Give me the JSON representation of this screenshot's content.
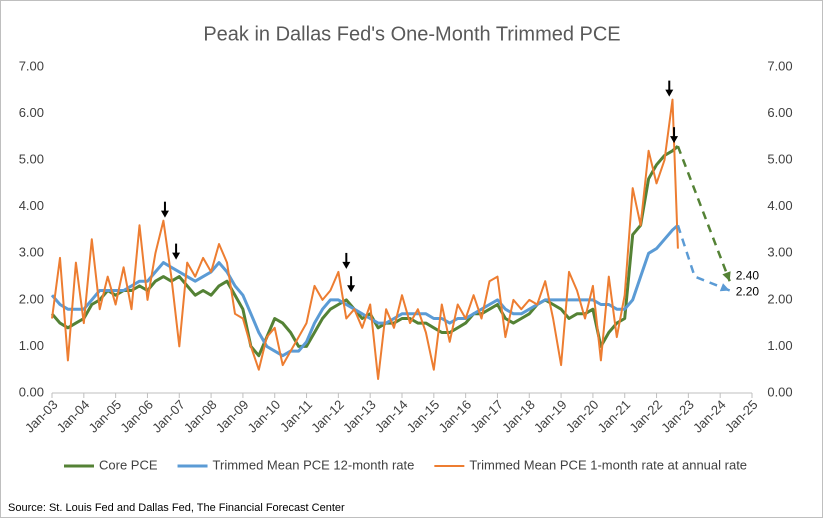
{
  "chart_data": {
    "type": "line",
    "title": "Peak in Dallas Fed's One-Month Trimmed PCE",
    "source": "Source: St. Louis Fed and Dallas Fed, The Financial Forecast Center",
    "x": [
      2003,
      2003.25,
      2003.5,
      2003.75,
      2004,
      2004.25,
      2004.5,
      2004.75,
      2005,
      2005.25,
      2005.5,
      2005.75,
      2006,
      2006.25,
      2006.5,
      2006.75,
      2007,
      2007.25,
      2007.5,
      2007.75,
      2008,
      2008.25,
      2008.5,
      2008.75,
      2009,
      2009.25,
      2009.5,
      2009.75,
      2010,
      2010.25,
      2010.5,
      2010.75,
      2011,
      2011.25,
      2011.5,
      2011.75,
      2012,
      2012.25,
      2012.5,
      2012.75,
      2013,
      2013.25,
      2013.5,
      2013.75,
      2014,
      2014.25,
      2014.5,
      2014.75,
      2015,
      2015.25,
      2015.5,
      2015.75,
      2016,
      2016.25,
      2016.5,
      2016.75,
      2017,
      2017.25,
      2017.5,
      2017.75,
      2018,
      2018.25,
      2018.5,
      2018.75,
      2019,
      2019.25,
      2019.5,
      2019.75,
      2020,
      2020.25,
      2020.5,
      2020.75,
      2021,
      2021.25,
      2021.5,
      2021.75,
      2022,
      2022.25,
      2022.5,
      2022.67
    ],
    "series": [
      {
        "name": "Core PCE",
        "color": "#548235",
        "values": [
          1.7,
          1.5,
          1.4,
          1.5,
          1.6,
          1.9,
          2.0,
          2.2,
          2.1,
          2.2,
          2.2,
          2.3,
          2.2,
          2.4,
          2.5,
          2.4,
          2.5,
          2.3,
          2.1,
          2.2,
          2.1,
          2.3,
          2.4,
          2.1,
          1.8,
          1.0,
          0.8,
          1.2,
          1.6,
          1.5,
          1.3,
          1.0,
          1.0,
          1.3,
          1.6,
          1.8,
          1.9,
          2.0,
          1.8,
          1.6,
          1.7,
          1.4,
          1.5,
          1.5,
          1.6,
          1.6,
          1.5,
          1.5,
          1.4,
          1.3,
          1.3,
          1.4,
          1.5,
          1.7,
          1.7,
          1.8,
          1.9,
          1.6,
          1.5,
          1.6,
          1.7,
          1.9,
          2.0,
          1.9,
          1.8,
          1.6,
          1.7,
          1.7,
          1.8,
          1.0,
          1.3,
          1.5,
          1.6,
          3.4,
          3.6,
          4.6,
          4.9,
          5.1,
          5.2,
          5.3
        ]
      },
      {
        "name": "Trimmed Mean PCE 12-month rate",
        "color": "#5b9bd5",
        "values": [
          2.1,
          1.9,
          1.8,
          1.8,
          1.8,
          2.0,
          2.2,
          2.2,
          2.2,
          2.2,
          2.3,
          2.4,
          2.4,
          2.6,
          2.8,
          2.7,
          2.6,
          2.5,
          2.4,
          2.5,
          2.6,
          2.8,
          2.6,
          2.3,
          2.1,
          1.7,
          1.3,
          1.0,
          0.9,
          0.8,
          0.9,
          0.9,
          1.1,
          1.5,
          1.8,
          2.0,
          2.0,
          1.9,
          1.8,
          1.7,
          1.6,
          1.5,
          1.5,
          1.6,
          1.7,
          1.7,
          1.7,
          1.7,
          1.6,
          1.6,
          1.5,
          1.6,
          1.6,
          1.7,
          1.8,
          1.9,
          2.0,
          1.8,
          1.7,
          1.7,
          1.8,
          1.9,
          2.0,
          2.0,
          2.0,
          2.0,
          2.0,
          2.0,
          2.0,
          1.9,
          1.9,
          1.8,
          1.8,
          2.0,
          2.5,
          3.0,
          3.1,
          3.3,
          3.5,
          3.6
        ]
      },
      {
        "name": "Trimmed Mean PCE 1-month rate at annual rate",
        "color": "#ed7d31",
        "values": [
          1.6,
          2.9,
          0.7,
          2.8,
          1.5,
          3.3,
          1.8,
          2.5,
          1.9,
          2.7,
          1.8,
          3.6,
          2.0,
          3.0,
          3.7,
          2.5,
          1.0,
          2.8,
          2.5,
          2.9,
          2.6,
          3.2,
          2.8,
          1.7,
          1.6,
          1.0,
          0.5,
          1.2,
          1.4,
          0.6,
          0.9,
          1.2,
          1.5,
          2.3,
          2.0,
          2.2,
          2.6,
          1.6,
          1.8,
          1.4,
          1.9,
          0.3,
          1.8,
          1.4,
          2.1,
          1.5,
          1.8,
          1.3,
          0.5,
          1.9,
          1.1,
          1.9,
          1.6,
          2.1,
          1.6,
          2.4,
          2.5,
          1.2,
          2.0,
          1.8,
          2.0,
          1.9,
          2.4,
          1.6,
          0.6,
          2.6,
          2.2,
          1.6,
          2.3,
          0.7,
          2.5,
          1.2,
          2.1,
          4.4,
          3.6,
          5.2,
          4.5,
          5.0,
          6.3,
          3.1
        ]
      }
    ],
    "forecasts": [
      {
        "color": "#548235",
        "x": [
          2022.67,
          2024.3
        ],
        "values": [
          5.3,
          2.4
        ],
        "value_label": "2.40"
      },
      {
        "color": "#5b9bd5",
        "x": [
          2022.67,
          2023.2,
          2024.3
        ],
        "values": [
          3.6,
          2.5,
          2.2
        ],
        "value_label": "2.20"
      }
    ],
    "peak_markers": {
      "x": [
        2006.55,
        2006.9,
        2012.25,
        2012.4,
        2022.4,
        2022.55
      ],
      "values": [
        3.7,
        2.8,
        2.6,
        2.1,
        6.3,
        5.3
      ]
    },
    "xlim": [
      2003,
      2025
    ],
    "xticks": [
      {
        "value": 2003,
        "label": "Jan-03"
      },
      {
        "value": 2004,
        "label": "Jan-04"
      },
      {
        "value": 2005,
        "label": "Jan-05"
      },
      {
        "value": 2006,
        "label": "Jan-06"
      },
      {
        "value": 2007,
        "label": "Jan-07"
      },
      {
        "value": 2008,
        "label": "Jan-08"
      },
      {
        "value": 2009,
        "label": "Jan-09"
      },
      {
        "value": 2010,
        "label": "Jan-10"
      },
      {
        "value": 2011,
        "label": "Jan-11"
      },
      {
        "value": 2012,
        "label": "Jan-12"
      },
      {
        "value": 2013,
        "label": "Jan-13"
      },
      {
        "value": 2014,
        "label": "Jan-14"
      },
      {
        "value": 2015,
        "label": "Jan-15"
      },
      {
        "value": 2016,
        "label": "Jan-16"
      },
      {
        "value": 2017,
        "label": "Jan-17"
      },
      {
        "value": 2018,
        "label": "Jan-18"
      },
      {
        "value": 2019,
        "label": "Jan-19"
      },
      {
        "value": 2020,
        "label": "Jan-20"
      },
      {
        "value": 2021,
        "label": "Jan-21"
      },
      {
        "value": 2022,
        "label": "Jan-22"
      },
      {
        "value": 2023,
        "label": "Jan-23"
      },
      {
        "value": 2024,
        "label": "Jan-24"
      },
      {
        "value": 2025,
        "label": "Jan-25"
      }
    ],
    "ylim": [
      0,
      7
    ],
    "yticks": [
      {
        "value": 0,
        "label": "0.00"
      },
      {
        "value": 1,
        "label": "1.00"
      },
      {
        "value": 2,
        "label": "2.00"
      },
      {
        "value": 3,
        "label": "3.00"
      },
      {
        "value": 4,
        "label": "4.00"
      },
      {
        "value": 5,
        "label": "5.00"
      },
      {
        "value": 6,
        "label": "6.00"
      },
      {
        "value": 7,
        "label": "7.00"
      }
    ],
    "y2lim": [
      0,
      7
    ],
    "y2ticks": [
      {
        "value": 0,
        "label": "0.00"
      },
      {
        "value": 1,
        "label": "1.00"
      },
      {
        "value": 2,
        "label": "2.00"
      },
      {
        "value": 3,
        "label": "3.00"
      },
      {
        "value": 4,
        "label": "4.00"
      },
      {
        "value": 5,
        "label": "5.00"
      },
      {
        "value": 6,
        "label": "6.00"
      },
      {
        "value": 7,
        "label": "7.00"
      }
    ],
    "grid": false,
    "legend": "bottom"
  }
}
